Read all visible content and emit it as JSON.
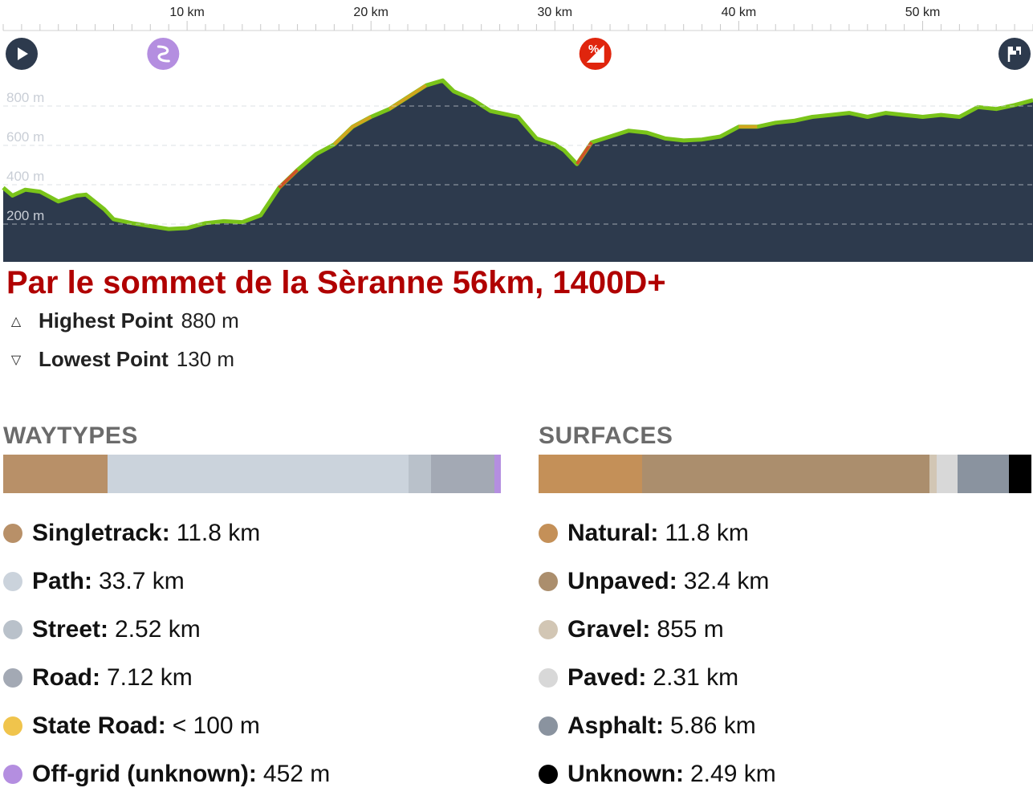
{
  "profile": {
    "distance_km": 56,
    "x_ticks": [
      {
        "km": 10,
        "label": "10 km"
      },
      {
        "km": 20,
        "label": "20 km"
      },
      {
        "km": 30,
        "label": "30 km"
      },
      {
        "km": 40,
        "label": "40 km"
      },
      {
        "km": 50,
        "label": "50 km"
      }
    ],
    "y_ticks": [
      {
        "m": 800,
        "label": "800 m"
      },
      {
        "m": 600,
        "label": "600 m"
      },
      {
        "m": 400,
        "label": "400 m"
      },
      {
        "m": 200,
        "label": "200 m"
      }
    ],
    "elevation_points": [
      [
        0,
        340
      ],
      [
        0.5,
        300
      ],
      [
        1.2,
        330
      ],
      [
        2,
        320
      ],
      [
        3,
        270
      ],
      [
        4,
        300
      ],
      [
        4.5,
        305
      ],
      [
        5.5,
        230
      ],
      [
        6,
        180
      ],
      [
        7,
        160
      ],
      [
        8,
        145
      ],
      [
        9,
        130
      ],
      [
        10,
        135
      ],
      [
        11,
        160
      ],
      [
        12,
        170
      ],
      [
        13,
        165
      ],
      [
        14,
        200
      ],
      [
        15,
        340
      ],
      [
        16,
        430
      ],
      [
        17,
        510
      ],
      [
        18,
        560
      ],
      [
        19,
        650
      ],
      [
        20,
        700
      ],
      [
        21,
        740
      ],
      [
        22,
        800
      ],
      [
        23,
        860
      ],
      [
        23.9,
        885
      ],
      [
        24.5,
        830
      ],
      [
        25.5,
        790
      ],
      [
        26.5,
        730
      ],
      [
        28,
        700
      ],
      [
        29,
        590
      ],
      [
        30,
        560
      ],
      [
        30.5,
        530
      ],
      [
        31.2,
        460
      ],
      [
        32,
        570
      ],
      [
        33,
        600
      ],
      [
        34,
        630
      ],
      [
        35,
        620
      ],
      [
        36,
        590
      ],
      [
        37,
        580
      ],
      [
        38,
        585
      ],
      [
        39,
        600
      ],
      [
        40,
        650
      ],
      [
        41,
        650
      ],
      [
        42,
        670
      ],
      [
        43,
        680
      ],
      [
        44,
        700
      ],
      [
        45,
        710
      ],
      [
        46,
        720
      ],
      [
        47,
        700
      ],
      [
        48,
        720
      ],
      [
        49,
        710
      ],
      [
        50,
        700
      ],
      [
        51,
        710
      ],
      [
        52,
        700
      ],
      [
        53,
        750
      ],
      [
        54,
        740
      ],
      [
        55,
        760
      ],
      [
        56,
        785
      ]
    ],
    "markers": [
      {
        "name": "start-icon",
        "km": 0
      },
      {
        "name": "curvy-road-icon",
        "km": 8.7
      },
      {
        "name": "steep-grade-icon",
        "km": 32.2
      },
      {
        "name": "finish-flag-icon",
        "km": 55.4
      }
    ],
    "colors": {
      "fill": "#2d3a4d",
      "line": "#7ac41a",
      "grade_warn": "#e0a020",
      "grade_steep": "#e0402a"
    }
  },
  "title": "Par le sommet de la Sèranne 56km, 1400D+",
  "stats": {
    "highest": {
      "label": "Highest Point",
      "value": "880 m"
    },
    "lowest": {
      "label": "Lowest Point",
      "value": "130 m"
    }
  },
  "waytypes": {
    "title": "WAYTYPES",
    "items": [
      {
        "label": "Singletrack:",
        "value": "11.8 km",
        "color": "#b89068",
        "share": 0.21
      },
      {
        "label": "Path:",
        "value": "33.7 km",
        "color": "#cbd3dc",
        "share": 0.604
      },
      {
        "label": "Street:",
        "value": "2.52 km",
        "color": "#b9c1ca",
        "share": 0.045
      },
      {
        "label": "Road:",
        "value": "7.12 km",
        "color": "#a3a9b4",
        "share": 0.128
      },
      {
        "label": "State Road:",
        "value": "< 100 m",
        "color": "#f0c44c",
        "share": 0.0
      },
      {
        "label": "Off-grid (unknown):",
        "value": "452 m",
        "color": "#b48ee0",
        "share": 0.013
      }
    ]
  },
  "surfaces": {
    "title": "SURFACES",
    "items": [
      {
        "label": "Natural:",
        "value": "11.8 km",
        "color": "#c49058",
        "share": 0.21
      },
      {
        "label": "Unpaved:",
        "value": "32.4 km",
        "color": "#ab8e6d",
        "share": 0.58
      },
      {
        "label": "Gravel:",
        "value": "855 m",
        "color": "#d2c6b4",
        "share": 0.015
      },
      {
        "label": "Paved:",
        "value": "2.31 km",
        "color": "#d8d8d8",
        "share": 0.042
      },
      {
        "label": "Asphalt:",
        "value": "5.86 km",
        "color": "#8a939f",
        "share": 0.104
      },
      {
        "label": "Unknown:",
        "value": "2.49 km",
        "color": "#000000",
        "share": 0.045
      }
    ]
  }
}
